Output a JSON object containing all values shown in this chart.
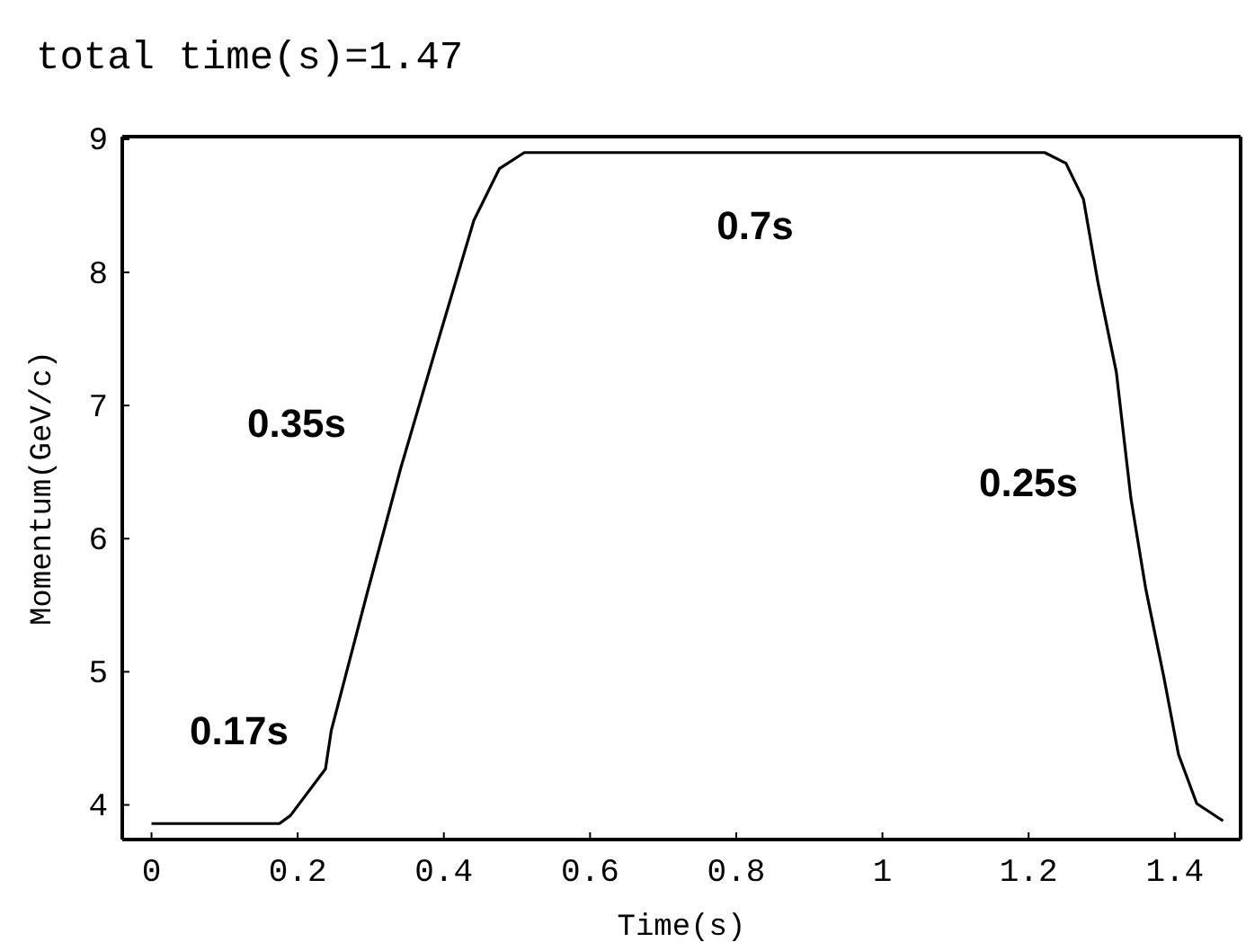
{
  "chart_data": {
    "type": "line",
    "title": "total time(s)=1.47",
    "xlabel": "Time(s)",
    "ylabel": "Momentum(GeV/c)",
    "x": [
      0,
      0.175,
      0.19,
      0.238,
      0.246,
      0.295,
      0.341,
      0.395,
      0.441,
      0.476,
      0.51,
      1.222,
      1.251,
      1.275,
      1.295,
      1.32,
      1.34,
      1.36,
      1.385,
      1.405,
      1.43,
      1.466
    ],
    "series": [
      {
        "color": "#000000",
        "values": [
          3.86,
          3.86,
          3.92,
          4.27,
          4.56,
          5.59,
          6.53,
          7.54,
          8.39,
          8.78,
          8.9,
          8.9,
          8.82,
          8.55,
          7.92,
          7.25,
          6.3,
          5.63,
          4.96,
          4.38,
          4.01,
          3.88
        ]
      }
    ],
    "xlim": [
      -0.04,
      1.49
    ],
    "xticks": [
      0,
      0.2,
      0.4,
      0.6,
      0.8,
      1,
      1.2,
      1.4
    ],
    "ylim": [
      3.74,
      9.02
    ],
    "yticks": [
      4,
      5,
      6,
      7,
      8,
      9
    ],
    "annotations": [
      "0.17s",
      "0.35s",
      "0.7s",
      "0.25s"
    ],
    "line_style": "solid"
  }
}
